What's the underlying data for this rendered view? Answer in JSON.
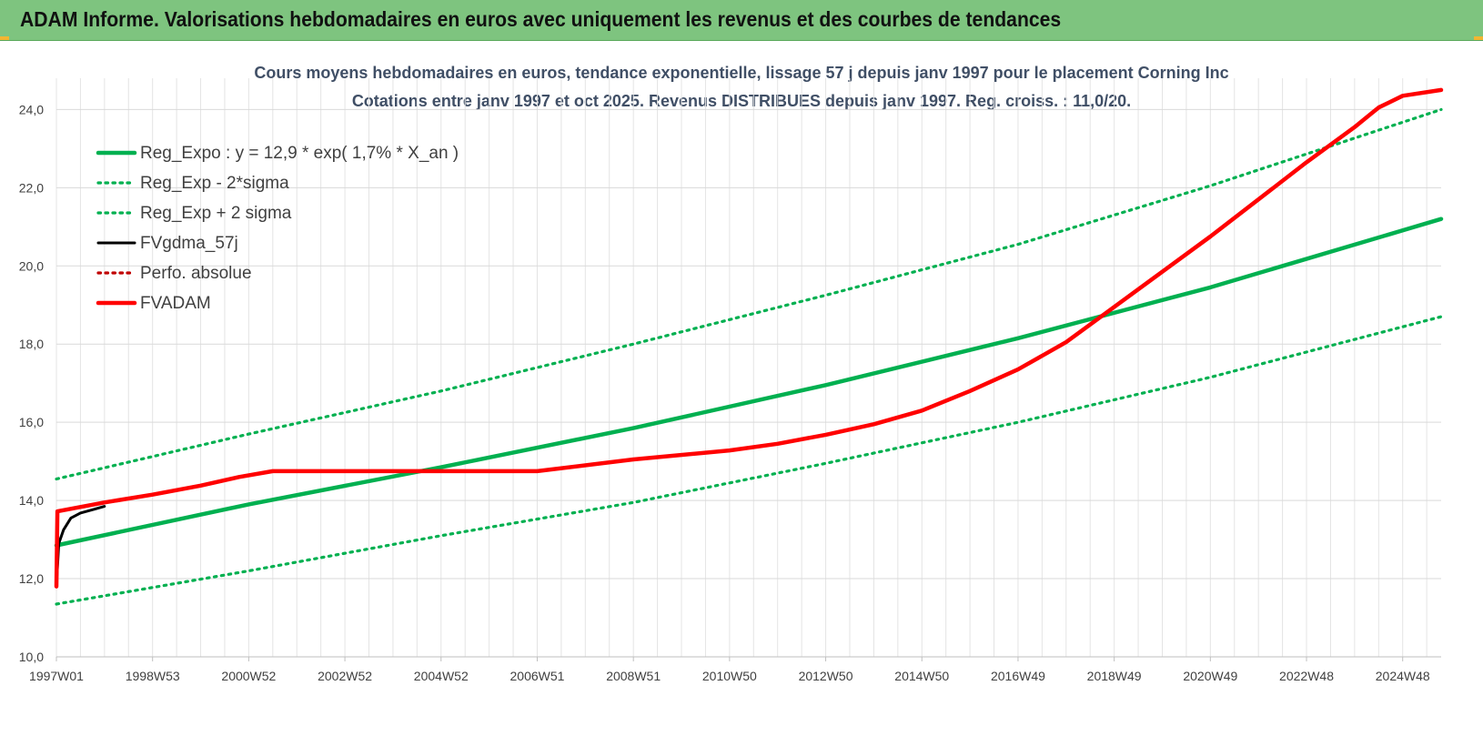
{
  "header": {
    "title": "ADAM Informe. Valorisations hebdomadaires en euros avec uniquement les revenus et des courbes de tendances",
    "background_color": "#7ec47f"
  },
  "chart_data": {
    "type": "line",
    "title": "Cours moyens hebdomadaires en euros, tendance exponentielle, lissage 57 j depuis janv 1997 pour le placement Corning Inc",
    "subtitle": "Cotations entre janv 1997 et oct 2025. Revenus DISTRIBUES depuis janv 1997. Reg. croiss. : 11,0/20.",
    "xlabel": "",
    "ylabel": "",
    "ylim": [
      10,
      24.8
    ],
    "y_ticks": [
      "10,0",
      "12,0",
      "14,0",
      "16,0",
      "18,0",
      "20,0",
      "22,0",
      "24,0"
    ],
    "x_range": [
      1997.0,
      2025.8
    ],
    "x_tick_years": [
      1997.0,
      1999.0,
      2001.0,
      2003.0,
      2005.0,
      2007.0,
      2009.0,
      2011.0,
      2013.0,
      2015.0,
      2017.0,
      2019.0,
      2021.0,
      2023.0,
      2025.0
    ],
    "x_tick_labels": [
      "1997W01",
      "1998W53",
      "2000W52",
      "2002W52",
      "2004W52",
      "2006W51",
      "2008W51",
      "2010W50",
      "2012W50",
      "2014W50",
      "2016W49",
      "2018W49",
      "2020W49",
      "2022W48",
      "2024W48"
    ],
    "grid": true,
    "legend_position": "top-left",
    "series": [
      {
        "name": "Reg_Expo : y = 12,9 * exp( 1,7% *  X_an )",
        "color": "#00b050",
        "style": "solid",
        "x": [
          1997.0,
          2001.0,
          2005.0,
          2009.0,
          2013.0,
          2017.0,
          2021.0,
          2025.8
        ],
        "values": [
          12.85,
          13.9,
          14.85,
          15.85,
          16.95,
          18.15,
          19.45,
          21.2
        ]
      },
      {
        "name": "Reg_Exp - 2*sigma",
        "color": "#00b050",
        "style": "dotted",
        "x": [
          1997.0,
          2001.0,
          2005.0,
          2009.0,
          2013.0,
          2017.0,
          2021.0,
          2025.8
        ],
        "values": [
          11.35,
          12.2,
          13.1,
          13.95,
          14.95,
          16.0,
          17.15,
          18.7
        ]
      },
      {
        "name": "Reg_Exp + 2 sigma",
        "color": "#00b050",
        "style": "dotted",
        "x": [
          1997.0,
          2001.0,
          2005.0,
          2009.0,
          2013.0,
          2017.0,
          2021.0,
          2025.8
        ],
        "values": [
          14.55,
          15.7,
          16.8,
          18.0,
          19.25,
          20.55,
          22.05,
          24.0
        ]
      },
      {
        "name": "FVgdma_57j",
        "color": "#000000",
        "style": "solid",
        "x": [
          1997.0,
          1997.05,
          1997.15,
          1997.3,
          1997.5,
          1997.8,
          1998.0
        ],
        "values": [
          11.8,
          12.9,
          13.25,
          13.55,
          13.68,
          13.78,
          13.85
        ]
      },
      {
        "name": "Perfo. absolue",
        "color": "#c00000",
        "style": "dotted",
        "x": [
          1997.0,
          1997.02,
          1998.0,
          1999.0,
          2000.0,
          2000.8,
          2001.5,
          2007.0,
          2009.0,
          2011.0,
          2012.0,
          2013.0,
          2014.0,
          2015.0,
          2016.0,
          2017.0,
          2018.0,
          2019.0,
          2020.0,
          2021.0,
          2022.0,
          2023.0,
          2024.0,
          2024.5,
          2025.0,
          2025.8
        ],
        "values": [
          11.8,
          13.72,
          13.95,
          14.15,
          14.38,
          14.6,
          14.75,
          14.75,
          15.05,
          15.28,
          15.45,
          15.68,
          15.95,
          16.3,
          16.8,
          17.35,
          18.05,
          18.95,
          19.85,
          20.75,
          21.7,
          22.65,
          23.55,
          24.05,
          24.35,
          24.5
        ]
      },
      {
        "name": "FVADAM",
        "color": "#ff0000",
        "style": "solid",
        "x": [
          1997.0,
          1997.02,
          1998.0,
          1999.0,
          2000.0,
          2000.8,
          2001.5,
          2007.0,
          2009.0,
          2011.0,
          2012.0,
          2013.0,
          2014.0,
          2015.0,
          2016.0,
          2017.0,
          2018.0,
          2019.0,
          2020.0,
          2021.0,
          2022.0,
          2023.0,
          2024.0,
          2024.5,
          2025.0,
          2025.8
        ],
        "values": [
          11.8,
          13.72,
          13.95,
          14.15,
          14.38,
          14.6,
          14.75,
          14.75,
          15.05,
          15.28,
          15.45,
          15.68,
          15.95,
          16.3,
          16.8,
          17.35,
          18.05,
          18.95,
          19.85,
          20.75,
          21.7,
          22.65,
          23.55,
          24.05,
          24.35,
          24.5
        ]
      }
    ]
  }
}
